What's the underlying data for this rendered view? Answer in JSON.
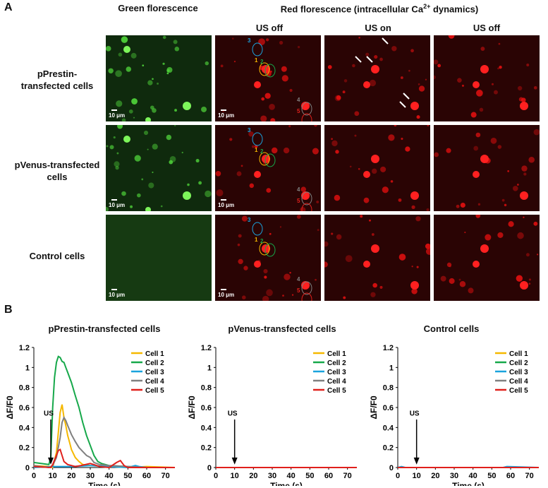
{
  "panel_a": {
    "letter": "A",
    "green_header": "Green florescence",
    "red_header_main": "Red florescence (intracellular Ca",
    "red_header_sup": "2+",
    "red_header_tail": " dynamics)",
    "col_labels": [
      "US off",
      "US on",
      "US off"
    ],
    "rows": [
      {
        "label_line1": "pPrestin-",
        "label_line2": "transfected cells"
      },
      {
        "label_line1": "pVenus-transfected",
        "label_line2": "cells"
      },
      {
        "label_line1": "Control cells",
        "label_line2": ""
      }
    ],
    "scale_bar": "10 μm",
    "cell_numbers": [
      "1",
      "2",
      "3",
      "4",
      "5"
    ]
  },
  "panel_b": {
    "letter": "B"
  },
  "colors": {
    "cell1": "#f5b800",
    "cell2": "#16a84a",
    "cell3": "#1aa3dd",
    "cell4": "#808080",
    "cell5": "#e0201c"
  },
  "chart_data": [
    {
      "type": "line",
      "title": "pPrestin-transfected cells",
      "xlabel": "Time (s)",
      "ylabel": "ΔF/F0",
      "xlim": [
        0,
        75
      ],
      "ylim": [
        0,
        1.2
      ],
      "xticks": [
        "0",
        "10",
        "20",
        "30",
        "40",
        "50",
        "60",
        "70"
      ],
      "yticks": [
        "0",
        "0.2",
        "0.4",
        "0.6",
        "0.8",
        "1",
        "1.2"
      ],
      "annotation": "US",
      "annotation_x": 9,
      "legend_position": "top-right",
      "series": [
        {
          "name": "Cell 1",
          "x": [
            0,
            8,
            10,
            12,
            13,
            14,
            15,
            16,
            17,
            18,
            19,
            20,
            22,
            24,
            26,
            30,
            40,
            50,
            60,
            75
          ],
          "y": [
            0.02,
            0.01,
            0.0,
            0.15,
            0.35,
            0.55,
            0.63,
            0.5,
            0.42,
            0.32,
            0.25,
            0.18,
            0.1,
            0.06,
            0.03,
            0.02,
            0.01,
            0.0,
            0.01,
            0.0
          ]
        },
        {
          "name": "Cell 2",
          "x": [
            0,
            8,
            9,
            10,
            11,
            12,
            13,
            14,
            15,
            16,
            17,
            18,
            20,
            22,
            24,
            26,
            28,
            30,
            32,
            34,
            36,
            40,
            50,
            60,
            75
          ],
          "y": [
            0.05,
            0.03,
            0.1,
            0.6,
            0.9,
            1.05,
            1.11,
            1.1,
            1.06,
            1.05,
            1.0,
            0.95,
            0.85,
            0.72,
            0.6,
            0.45,
            0.32,
            0.22,
            0.12,
            0.06,
            0.04,
            0.02,
            0.01,
            0.0,
            0.0
          ]
        },
        {
          "name": "Cell 3",
          "x": [
            0,
            10,
            20,
            30,
            40,
            50,
            54,
            56,
            60,
            75
          ],
          "y": [
            0.0,
            0.01,
            0.01,
            0.02,
            0.01,
            0.0,
            0.02,
            0.01,
            0.0,
            0.0
          ]
        },
        {
          "name": "Cell 4",
          "x": [
            0,
            8,
            10,
            12,
            14,
            15,
            16,
            17,
            18,
            20,
            22,
            24,
            26,
            28,
            30,
            32,
            35,
            40,
            50,
            60,
            75
          ],
          "y": [
            0.02,
            0.0,
            0.02,
            0.1,
            0.3,
            0.45,
            0.5,
            0.47,
            0.42,
            0.33,
            0.26,
            0.2,
            0.16,
            0.12,
            0.1,
            0.05,
            0.03,
            0.02,
            0.01,
            0.0,
            0.0
          ]
        },
        {
          "name": "Cell 5",
          "x": [
            0,
            9,
            10,
            12,
            13,
            14,
            15,
            16,
            18,
            20,
            22,
            25,
            30,
            35,
            40,
            44,
            46,
            48,
            50,
            60,
            75
          ],
          "y": [
            0.01,
            0.0,
            0.03,
            0.12,
            0.17,
            0.18,
            0.12,
            0.06,
            0.03,
            0.02,
            0.01,
            0.02,
            0.04,
            0.01,
            0.0,
            0.05,
            0.07,
            0.02,
            0.0,
            0.0,
            0.0
          ]
        }
      ]
    },
    {
      "type": "line",
      "title": "pVenus-transfected cells",
      "xlabel": "Time (s)",
      "ylabel": "ΔF/F0",
      "xlim": [
        0,
        75
      ],
      "ylim": [
        0,
        1.2
      ],
      "xticks": [
        "0",
        "10",
        "20",
        "30",
        "40",
        "50",
        "60",
        "70"
      ],
      "yticks": [
        "0",
        "0.2",
        "0.4",
        "0.6",
        "0.8",
        "1",
        "1.2"
      ],
      "annotation": "US",
      "annotation_x": 10,
      "legend_position": "top-right",
      "series": [
        {
          "name": "Cell 1",
          "x": [
            0,
            75
          ],
          "y": [
            0.0,
            0.0
          ]
        },
        {
          "name": "Cell 2",
          "x": [
            0,
            75
          ],
          "y": [
            0.0,
            0.0
          ]
        },
        {
          "name": "Cell 3",
          "x": [
            0,
            75
          ],
          "y": [
            0.0,
            0.0
          ]
        },
        {
          "name": "Cell 4",
          "x": [
            0,
            75
          ],
          "y": [
            0.0,
            0.0
          ]
        },
        {
          "name": "Cell 5",
          "x": [
            0,
            75
          ],
          "y": [
            0.0,
            0.0
          ]
        }
      ]
    },
    {
      "type": "line",
      "title": "Control cells",
      "xlabel": "Time (s)",
      "ylabel": "ΔF/F0",
      "xlim": [
        0,
        75
      ],
      "ylim": [
        0,
        1.2
      ],
      "xticks": [
        "0",
        "10",
        "20",
        "30",
        "40",
        "50",
        "60",
        "70"
      ],
      "yticks": [
        "0",
        "0.2",
        "0.4",
        "0.6",
        "0.8",
        "1",
        "1.2"
      ],
      "annotation": "US",
      "annotation_x": 10,
      "legend_position": "top-right",
      "series": [
        {
          "name": "Cell 1",
          "x": [
            0,
            75
          ],
          "y": [
            0.0,
            0.0
          ]
        },
        {
          "name": "Cell 2",
          "x": [
            0,
            75
          ],
          "y": [
            0.0,
            0.0
          ]
        },
        {
          "name": "Cell 3",
          "x": [
            0,
            2,
            4,
            56,
            58,
            75
          ],
          "y": [
            0.0,
            0.01,
            0.0,
            0.0,
            0.01,
            0.0
          ]
        },
        {
          "name": "Cell 4",
          "x": [
            0,
            75
          ],
          "y": [
            0.0,
            0.0
          ]
        },
        {
          "name": "Cell 5",
          "x": [
            0,
            75
          ],
          "y": [
            0.0,
            0.0
          ]
        }
      ]
    }
  ]
}
